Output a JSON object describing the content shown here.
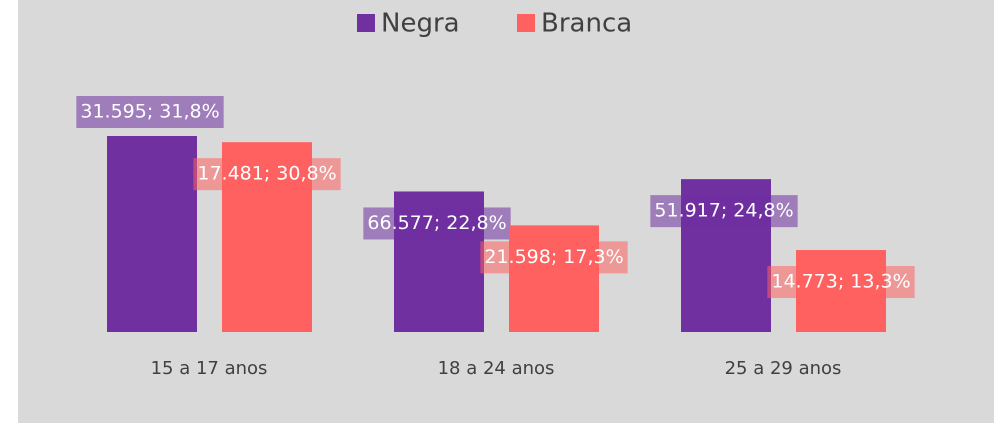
{
  "chart_data": {
    "type": "bar",
    "categories": [
      "15 a 17 anos",
      "18 a 24 anos",
      "25 a 29 anos"
    ],
    "series": [
      {
        "name": "Negra",
        "color": "#7030a0",
        "values": [
          31.8,
          22.8,
          24.8
        ],
        "value_labels": [
          "31.595; 31,8%",
          "66.577; 22,8%",
          "51.917; 24,8%"
        ]
      },
      {
        "name": "Branca",
        "color": "#ff6161",
        "values": [
          30.8,
          17.3,
          13.3
        ],
        "value_labels": [
          "17.481; 30,8%",
          "21.598; 17,3%",
          "14.773; 13,3%"
        ]
      }
    ]
  }
}
